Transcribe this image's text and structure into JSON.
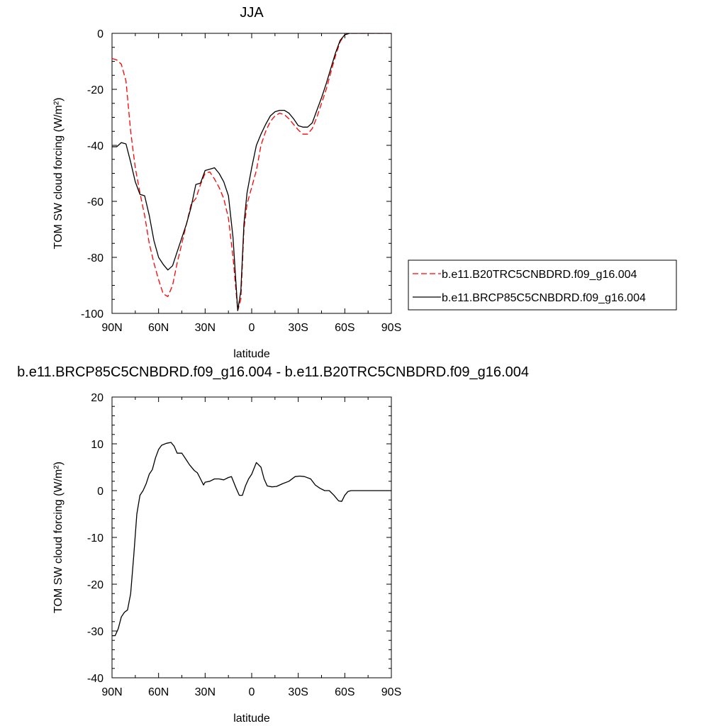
{
  "chart_data": [
    {
      "type": "line",
      "title": "JJA",
      "xlabel": "latitude",
      "ylabel": "TOM SW cloud forcing (W/m²)",
      "xlim": [
        90,
        -90
      ],
      "ylim": [
        -100,
        0
      ],
      "x_ticks": [
        90,
        60,
        30,
        0,
        -30,
        -60,
        -90
      ],
      "x_tick_labels": [
        "90N",
        "60N",
        "30N",
        "0",
        "30S",
        "60S",
        "90S"
      ],
      "y_ticks": [
        0,
        -20,
        -40,
        -60,
        -80,
        -100
      ],
      "y_tick_labels": [
        "0",
        "-20",
        "-40",
        "-60",
        "-80",
        "-100"
      ],
      "legend_position": "right",
      "series": [
        {
          "name": "b.e11.B20TRC5CNBDRD.f09_g16.004",
          "color": "#ff0000",
          "style": "dashed",
          "x": [
            90,
            87,
            84,
            81,
            78,
            75,
            72,
            69,
            66,
            63,
            60,
            57,
            54,
            51,
            48,
            45,
            42,
            39,
            36,
            33,
            30,
            27,
            24,
            21,
            18,
            15,
            12,
            9,
            7,
            5,
            3,
            0,
            -3,
            -6,
            -9,
            -12,
            -15,
            -18,
            -21,
            -24,
            -27,
            -30,
            -33,
            -36,
            -39,
            -42,
            -45,
            -48,
            -51,
            -54,
            -57,
            -60,
            -63,
            -66,
            -69,
            -72,
            -75,
            -78,
            -81,
            -84,
            -87,
            -90
          ],
          "values": [
            -9,
            -9.5,
            -11,
            -17,
            -35,
            -48,
            -57,
            -65,
            -75,
            -82,
            -88,
            -93,
            -94,
            -90,
            -82,
            -75,
            -68,
            -61,
            -59,
            -54,
            -50,
            -49.5,
            -52,
            -55,
            -59,
            -66,
            -80,
            -99,
            -95,
            -70,
            -61,
            -55,
            -49,
            -40,
            -35,
            -31.5,
            -29.5,
            -28.5,
            -29,
            -30.5,
            -32.5,
            -34.5,
            -36,
            -36,
            -34,
            -30,
            -25,
            -20,
            -14,
            -8,
            -3,
            -0.5,
            0,
            0,
            0,
            0,
            0,
            0,
            0,
            0,
            0,
            0
          ]
        },
        {
          "name": "b.e11.BRCP85C5CNBDRD.f09_g16.004",
          "color": "#000000",
          "style": "solid",
          "x": [
            90,
            87,
            84,
            81,
            78,
            75,
            72,
            69,
            66,
            63,
            60,
            57,
            54,
            51,
            48,
            45,
            42,
            39,
            36,
            33,
            30,
            27,
            24,
            21,
            18,
            15,
            12,
            9,
            7,
            5,
            3,
            0,
            -3,
            -6,
            -9,
            -12,
            -15,
            -18,
            -21,
            -24,
            -27,
            -30,
            -33,
            -36,
            -39,
            -42,
            -45,
            -48,
            -51,
            -54,
            -57,
            -60,
            -63,
            -66,
            -69,
            -72,
            -75,
            -78,
            -81,
            -84,
            -87,
            -90
          ],
          "values": [
            -40.5,
            -40.5,
            -39,
            -39.5,
            -46,
            -53,
            -57.5,
            -58,
            -65,
            -74,
            -80,
            -82.5,
            -84.5,
            -83,
            -78,
            -73,
            -68,
            -62,
            -54,
            -53.5,
            -49,
            -48.5,
            -48,
            -50,
            -53,
            -58,
            -73,
            -99,
            -92,
            -68,
            -57,
            -48,
            -40,
            -36,
            -32.5,
            -29.5,
            -28,
            -27.5,
            -27.5,
            -28.5,
            -30.5,
            -33,
            -33.5,
            -33.5,
            -32,
            -27.5,
            -23,
            -18,
            -12.5,
            -7,
            -2.5,
            -0.5,
            0,
            0,
            0,
            0,
            0,
            0,
            0,
            0,
            0,
            0
          ]
        }
      ]
    },
    {
      "type": "line",
      "title": "b.e11.BRCP85C5CNBDRD.f09_g16.004 - b.e11.B20TRC5CNBDRD.f09_g16.004",
      "xlabel": "latitude",
      "ylabel": "TOM SW cloud forcing (W/m²)",
      "xlim": [
        90,
        -90
      ],
      "ylim": [
        -40,
        20
      ],
      "x_ticks": [
        90,
        60,
        30,
        0,
        -30,
        -60,
        -90
      ],
      "x_tick_labels": [
        "90N",
        "60N",
        "30N",
        "0",
        "30S",
        "60S",
        "90S"
      ],
      "y_ticks": [
        20,
        10,
        0,
        -10,
        -20,
        -30,
        -40
      ],
      "y_tick_labels": [
        "20",
        "10",
        "0",
        "-10",
        "-20",
        "-30",
        "-40"
      ],
      "series": [
        {
          "color": "#000000",
          "style": "solid",
          "x": [
            90,
            88,
            86,
            84,
            82,
            80,
            78,
            76,
            74,
            72,
            70,
            68,
            66,
            64,
            62,
            60,
            58,
            55,
            52,
            50,
            48,
            45,
            42,
            40,
            37,
            35,
            33,
            31,
            30,
            27,
            24,
            21,
            18,
            15,
            13,
            10,
            8,
            6,
            4,
            2,
            0,
            -3,
            -6,
            -8,
            -10,
            -13,
            -16,
            -20,
            -24,
            -28,
            -31,
            -34,
            -38,
            -41,
            -44,
            -47,
            -50,
            -53,
            -56,
            -58,
            -60,
            -62,
            -64,
            -67,
            -70,
            -75,
            -80,
            -85,
            -90
          ],
          "values": [
            -31,
            -31,
            -29.5,
            -27,
            -26,
            -25.5,
            -22,
            -14,
            -5,
            -1,
            0,
            1.5,
            3.5,
            4.5,
            7,
            8.8,
            9.7,
            10.1,
            10.3,
            9.5,
            8,
            8,
            6.5,
            5.5,
            4.3,
            3.8,
            2.5,
            1.2,
            1.8,
            2,
            2.5,
            2.5,
            2.3,
            2.8,
            3,
            0.5,
            -1,
            -1,
            1,
            2.5,
            3.5,
            6,
            5,
            2.5,
            1,
            0.8,
            0.9,
            1.5,
            2,
            3,
            3.1,
            3,
            2.5,
            1.2,
            0.5,
            0,
            0,
            -1,
            -2.2,
            -2.3,
            -1,
            -0.2,
            0,
            0,
            0,
            0,
            0,
            0,
            0
          ]
        }
      ]
    }
  ]
}
